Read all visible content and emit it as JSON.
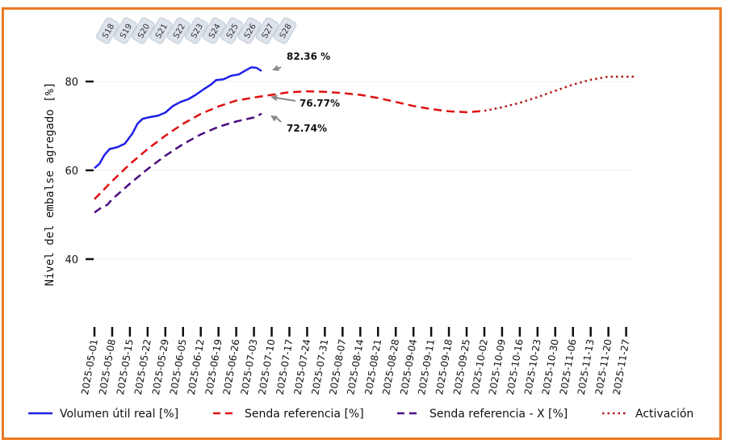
{
  "chart_data": {
    "type": "line",
    "title": "",
    "xlabel": "",
    "ylabel": "Nivel del embalse agregado [%]",
    "ylim": [
      25,
      92
    ],
    "yticks": [
      40,
      60,
      80
    ],
    "x_range": [
      "2025-05-01",
      "2025-11-30"
    ],
    "grid": "horizontal",
    "legend_position": "bottom",
    "x_tick_labels": [
      "2025-05-01",
      "2025-05-08",
      "2025-05-15",
      "2025-05-22",
      "2025-05-29",
      "2025-06-05",
      "2025-06-12",
      "2025-06-19",
      "2025-06-26",
      "2025-07-03",
      "2025-07-10",
      "2025-07-17",
      "2025-07-24",
      "2025-07-31",
      "2025-08-07",
      "2025-08-14",
      "2025-08-21",
      "2025-08-28",
      "2025-09-04",
      "2025-09-11",
      "2025-09-18",
      "2025-09-25",
      "2025-10-02",
      "2025-10-09",
      "2025-10-16",
      "2025-10-23",
      "2025-10-30",
      "2025-11-06",
      "2025-11-13",
      "2025-11-20",
      "2025-11-27"
    ],
    "week_labels": [
      {
        "label": "S18",
        "date": "2025-05-04"
      },
      {
        "label": "S19",
        "date": "2025-05-11"
      },
      {
        "label": "S20",
        "date": "2025-05-18"
      },
      {
        "label": "S21",
        "date": "2025-05-25"
      },
      {
        "label": "S22",
        "date": "2025-06-01"
      },
      {
        "label": "S23",
        "date": "2025-06-08"
      },
      {
        "label": "S24",
        "date": "2025-06-15"
      },
      {
        "label": "S25",
        "date": "2025-06-22"
      },
      {
        "label": "S26",
        "date": "2025-06-29"
      },
      {
        "label": "S27",
        "date": "2025-07-06"
      },
      {
        "label": "S28",
        "date": "2025-07-13"
      }
    ],
    "series": [
      {
        "name": "Volumen útil real [%]",
        "color": "#1f1fe8",
        "style": "solid",
        "points": [
          [
            "2025-05-01",
            60.5
          ],
          [
            "2025-05-03",
            61.5
          ],
          [
            "2025-05-05",
            63.5
          ],
          [
            "2025-05-07",
            64.8
          ],
          [
            "2025-05-10",
            65.2
          ],
          [
            "2025-05-13",
            66.0
          ],
          [
            "2025-05-16",
            68.3
          ],
          [
            "2025-05-18",
            70.5
          ],
          [
            "2025-05-20",
            71.6
          ],
          [
            "2025-05-23",
            72.0
          ],
          [
            "2025-05-26",
            72.3
          ],
          [
            "2025-05-29",
            73.0
          ],
          [
            "2025-06-01",
            74.5
          ],
          [
            "2025-06-04",
            75.4
          ],
          [
            "2025-06-07",
            76.0
          ],
          [
            "2025-06-10",
            77.0
          ],
          [
            "2025-06-13",
            78.2
          ],
          [
            "2025-06-16",
            79.3
          ],
          [
            "2025-06-18",
            80.3
          ],
          [
            "2025-06-21",
            80.5
          ],
          [
            "2025-06-24",
            81.3
          ],
          [
            "2025-06-27",
            81.6
          ],
          [
            "2025-06-30",
            82.6
          ],
          [
            "2025-07-02",
            83.2
          ],
          [
            "2025-07-04",
            83.1
          ],
          [
            "2025-07-06",
            82.36
          ]
        ]
      },
      {
        "name": "Senda referencia [%]",
        "color": "#e01010",
        "style": "dashed",
        "points": [
          [
            "2025-05-01",
            53.5
          ],
          [
            "2025-05-08",
            57.6
          ],
          [
            "2025-05-15",
            61.4
          ],
          [
            "2025-05-22",
            64.8
          ],
          [
            "2025-05-29",
            67.8
          ],
          [
            "2025-06-05",
            70.5
          ],
          [
            "2025-06-12",
            72.7
          ],
          [
            "2025-06-19",
            74.4
          ],
          [
            "2025-06-26",
            75.7
          ],
          [
            "2025-07-03",
            76.4
          ],
          [
            "2025-07-10",
            77.0
          ],
          [
            "2025-07-17",
            77.6
          ],
          [
            "2025-07-24",
            77.8
          ],
          [
            "2025-07-31",
            77.7
          ],
          [
            "2025-08-07",
            77.4
          ],
          [
            "2025-08-14",
            77.0
          ],
          [
            "2025-08-21",
            76.3
          ],
          [
            "2025-08-28",
            75.4
          ],
          [
            "2025-09-04",
            74.5
          ],
          [
            "2025-09-11",
            73.8
          ],
          [
            "2025-09-18",
            73.3
          ],
          [
            "2025-09-25",
            73.1
          ],
          [
            "2025-10-02",
            73.4
          ]
        ]
      },
      {
        "name": "Senda referencia - X [%]",
        "color": "#4a0d80",
        "style": "dashed",
        "points": [
          [
            "2025-05-01",
            50.5
          ],
          [
            "2025-05-04",
            51.7
          ],
          [
            "2025-05-06",
            52.2
          ],
          [
            "2025-05-08",
            53.5
          ],
          [
            "2025-05-15",
            57.0
          ],
          [
            "2025-05-22",
            60.3
          ],
          [
            "2025-05-29",
            63.3
          ],
          [
            "2025-06-05",
            65.9
          ],
          [
            "2025-06-12",
            68.1
          ],
          [
            "2025-06-19",
            69.8
          ],
          [
            "2025-06-26",
            71.0
          ],
          [
            "2025-07-03",
            71.9
          ],
          [
            "2025-07-06",
            72.74
          ]
        ]
      },
      {
        "name": "Activación",
        "color": "#b31818",
        "style": "dotted",
        "points": [
          [
            "2025-10-02",
            73.4
          ],
          [
            "2025-10-09",
            74.2
          ],
          [
            "2025-10-16",
            75.2
          ],
          [
            "2025-10-23",
            76.5
          ],
          [
            "2025-10-30",
            77.9
          ],
          [
            "2025-11-06",
            79.3
          ],
          [
            "2025-11-13",
            80.4
          ],
          [
            "2025-11-20",
            81.1
          ],
          [
            "2025-11-27",
            81.1
          ],
          [
            "2025-11-30",
            81.1
          ]
        ]
      }
    ],
    "annotations": [
      {
        "text": "82.36 %",
        "date": "2025-07-06",
        "value": 82.36
      },
      {
        "text": "76.77%",
        "date": "2025-07-06",
        "value": 76.77
      },
      {
        "text": "72.74%",
        "date": "2025-07-06",
        "value": 72.74
      }
    ]
  }
}
